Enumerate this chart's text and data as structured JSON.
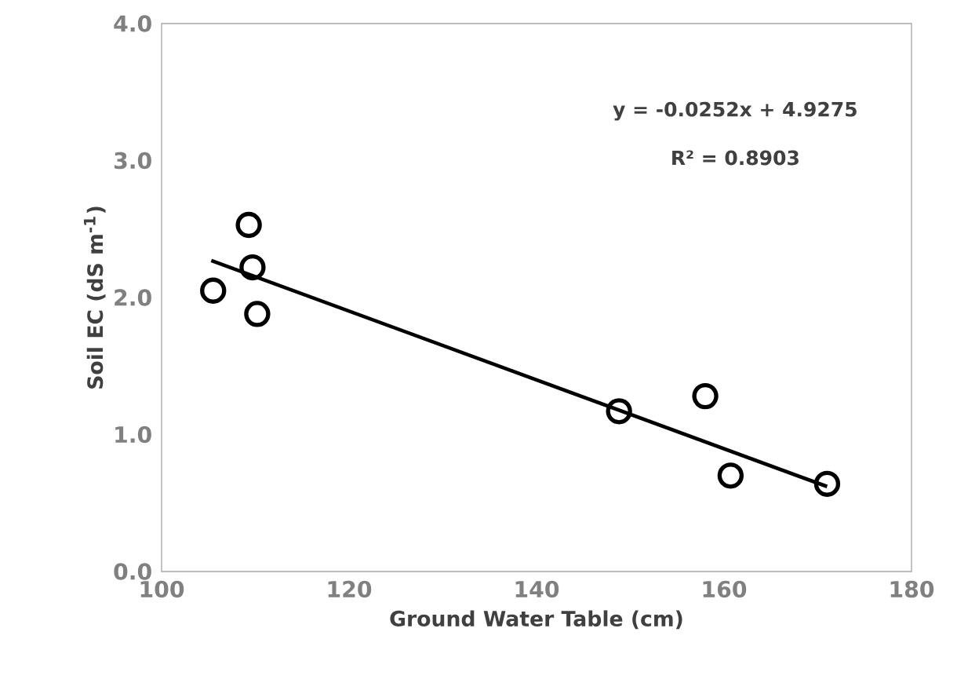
{
  "chart_data": {
    "type": "scatter",
    "xlabel": "Ground Water Table (cm)",
    "ylabel": "Soil EC (dS m$^{-1}$)",
    "series": [
      {
        "color": "#000000",
        "marker": "circle",
        "x": [
          105.5,
          109.3,
          109.7,
          110.2,
          148.8,
          158.0,
          160.7,
          171.0
        ],
        "values": [
          2.05,
          2.53,
          2.22,
          1.88,
          1.17,
          1.28,
          0.7,
          0.64
        ]
      },
      {
        "type": "line",
        "color": "#000000",
        "x": [
          105.3,
          171.0
        ],
        "values": [
          2.27,
          0.62
        ]
      }
    ],
    "annotations": [
      "y =  -0.0252x  +  4.9275",
      "R² = 0.8903"
    ],
    "xlim": [
      100,
      180
    ],
    "xticks": [
      100,
      120,
      140,
      160,
      180
    ],
    "ylim": [
      0,
      4
    ],
    "yticks": [
      {
        "value": 0,
        "label": "0.0"
      },
      {
        "value": 1,
        "label": "1.0"
      },
      {
        "value": 2,
        "label": "2.0"
      },
      {
        "value": 3,
        "label": "3.0"
      },
      {
        "value": 4,
        "label": "4.0"
      }
    ]
  }
}
